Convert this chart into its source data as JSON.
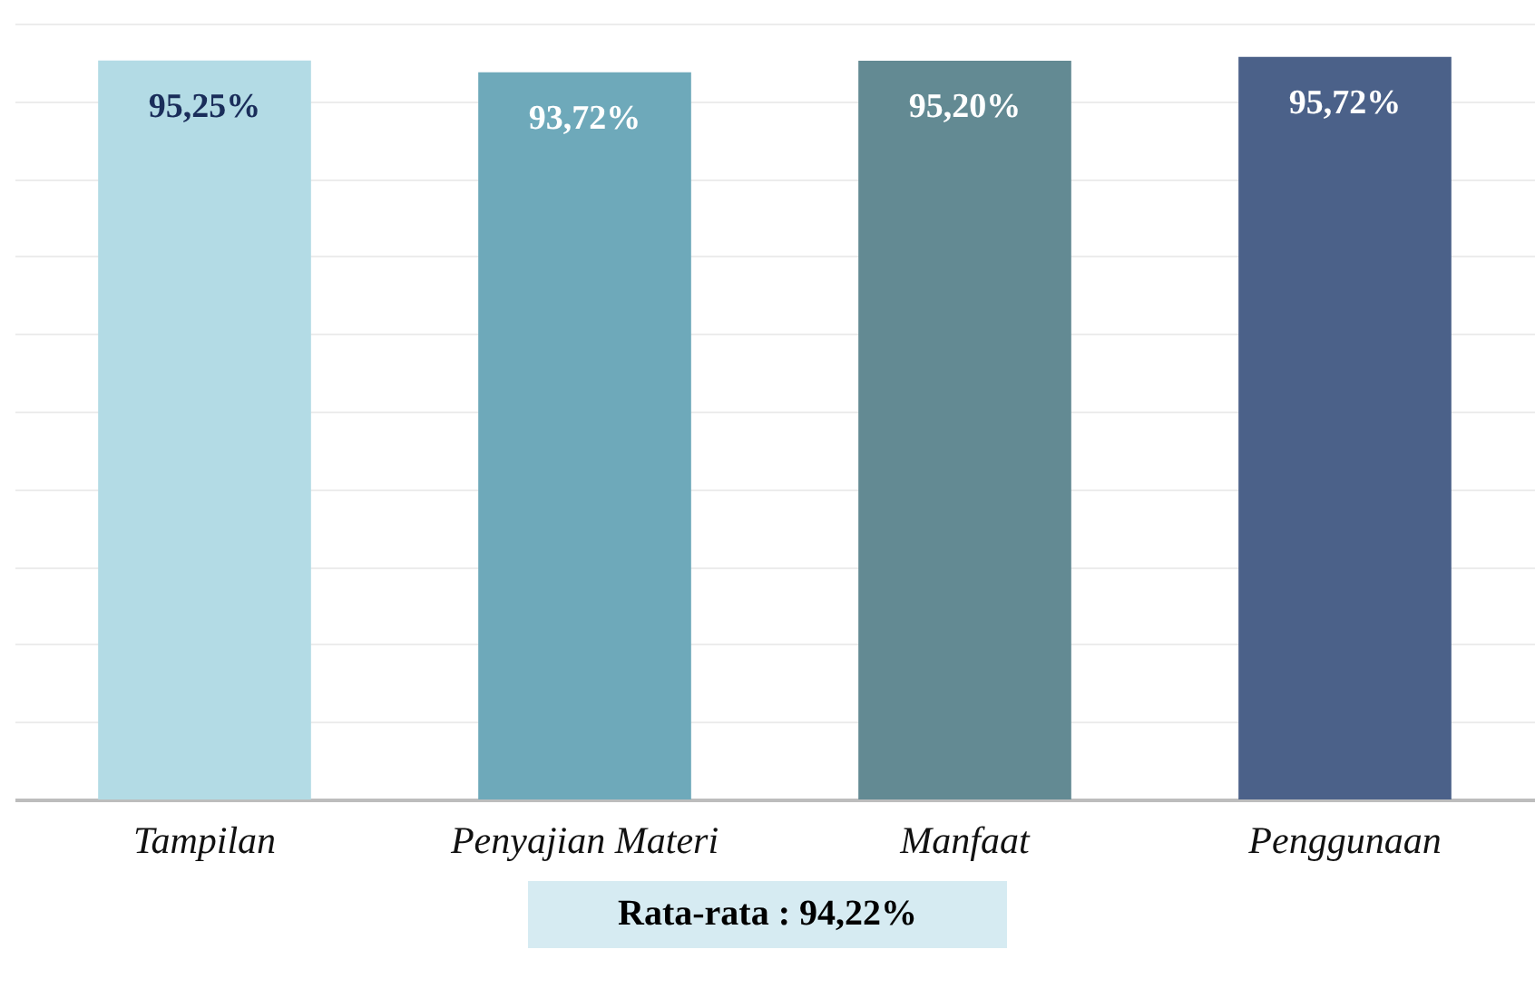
{
  "chart_data": {
    "type": "bar",
    "categories": [
      "Tampilan",
      "Penyajian Materi",
      "Manfaat",
      "Penggunaan"
    ],
    "values": [
      95.25,
      93.72,
      95.2,
      95.72
    ],
    "colors": [
      "#b3dbe5",
      "#6ea9ba",
      "#638a93",
      "#4b6189"
    ],
    "value_labels": [
      "95,25%",
      "93,72%",
      "95,20%",
      "95,72%"
    ],
    "ylim": [
      0,
      100
    ],
    "yticks": [
      {
        "value": 0,
        "label": null
      },
      {
        "value": 10,
        "label": null
      },
      {
        "value": 20,
        "label": null
      },
      {
        "value": 30,
        "label": null
      },
      {
        "value": 40,
        "label": null
      },
      {
        "value": 50,
        "label": null
      },
      {
        "value": 60,
        "label": null
      },
      {
        "value": 70,
        "label": null
      },
      {
        "value": 80,
        "label": null
      },
      {
        "value": 90,
        "label": null
      },
      {
        "value": 100,
        "label": null
      }
    ],
    "grid": "y",
    "tick_labels": "x",
    "annotations": [
      "Rata-rata : 94,22%"
    ]
  }
}
